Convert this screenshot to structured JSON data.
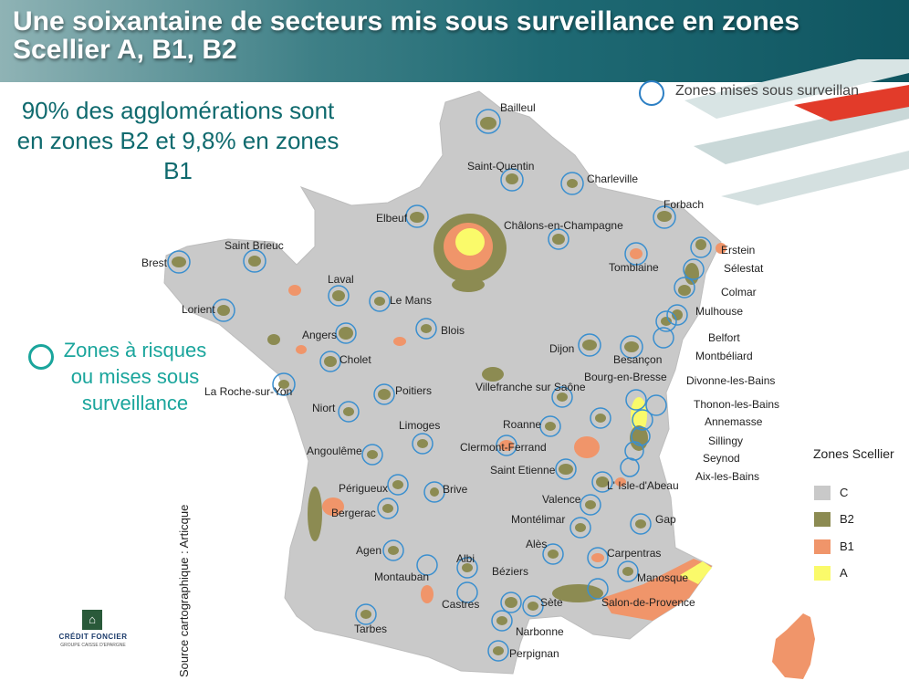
{
  "header": {
    "title": "Une soixantaine de secteurs mis sous surveillance en zones\nScellier A, B1, B2"
  },
  "stats_text": "90%  des agglomérations sont en zones B2 et 9,8% en zones B1",
  "risk_legend": "Zones à risques ou mises sous surveillance",
  "top_legend": "Zones mises sous surveillan",
  "scellier_legend": {
    "title": "Zones Scellier",
    "items": [
      {
        "label": "C",
        "color": "#c9c9c9"
      },
      {
        "label": "B2",
        "color": "#8c8b52"
      },
      {
        "label": "B1",
        "color": "#f0956a"
      },
      {
        "label": "A",
        "color": "#fafa6a"
      }
    ]
  },
  "cities": [
    "Bailleul",
    "Saint-Quentin",
    "Charleville",
    "Forbach",
    "Elbeuf",
    "Châlons-en-Champagne",
    "Saint Brieuc",
    "Brest",
    "Tomblaine",
    "Erstein",
    "Sélestat",
    "Colmar",
    "Laval",
    "Le Mans",
    "Lorient",
    "Mulhouse",
    "Angers",
    "Blois",
    "Belfort",
    "Montbéliard",
    "Cholet",
    "Dijon",
    "Besançon",
    "Bourg-en-Bresse",
    "Divonne-les-Bains",
    "La Roche-sur-Yon",
    "Poitiers",
    "Villefranche sur Saône",
    "Thonon-les-Bains",
    "Niort",
    "Annemasse",
    "Limoges",
    "Roanne",
    "Sillingy",
    "Angoulême",
    "Clermont-Ferrand",
    "Seynod",
    "Saint Etienne",
    "Aix-les-Bains",
    "Périgueux",
    "Brive",
    "L' Isle-d'Abeau",
    "Bergerac",
    "Valence",
    "Montélimar",
    "Gap",
    "Alès",
    "Agen",
    "Carpentras",
    "Albi",
    "Béziers",
    "Montauban",
    "Manosque",
    "Sète",
    "Castres",
    "Salon-de-Provence",
    "Tarbes",
    "Narbonne",
    "Perpignan"
  ],
  "source": "Source cartographique : Articque",
  "logo": {
    "name": "CRÉDIT FONCIER",
    "subtitle": "GROUPE CAISSE D'EPARGNE"
  }
}
